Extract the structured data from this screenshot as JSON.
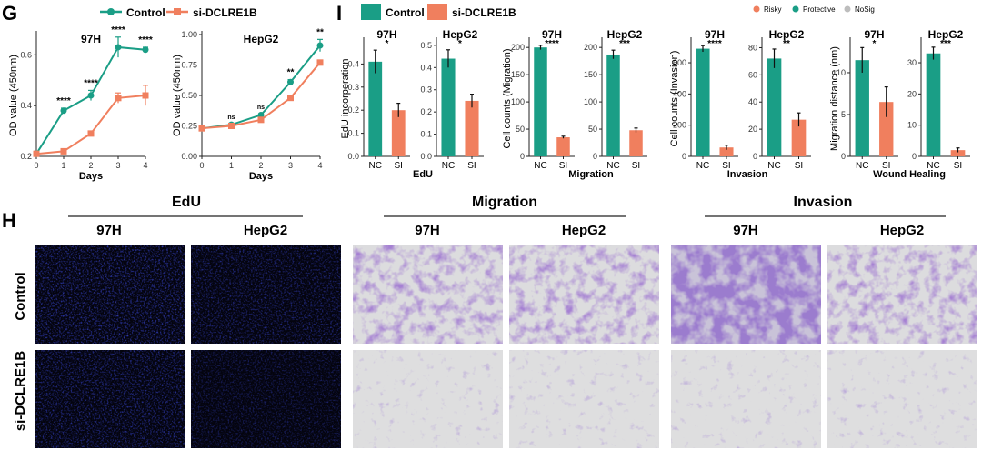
{
  "panels": {
    "G": "G",
    "I": "I",
    "H": "H"
  },
  "colors": {
    "control": "#1a9e86",
    "si": "#f07f5e",
    "risky": "#f07f5e",
    "protective": "#1a9e86",
    "nosig": "#bdbdbd",
    "axis": "#222222"
  },
  "legend_top": {
    "control": "Control",
    "si": "si-DCLRE1B"
  },
  "legend_i": {
    "control": "Control",
    "si": "si-DCLRE1B"
  },
  "legend_sig": {
    "risky": "Risky",
    "protective": "Protective",
    "nosig": "NoSig"
  },
  "chart_data": [
    {
      "type": "line",
      "title": "97H",
      "xlabel": "Days",
      "ylabel": "OD value (450nm)",
      "x": [
        0,
        1,
        2,
        3,
        4
      ],
      "xlim": [
        0,
        4
      ],
      "ylim": [
        0.2,
        0.68
      ],
      "yticks": [
        "0.2",
        "0.4",
        "0.6"
      ],
      "ytick_values": [
        0.2,
        0.4,
        0.6
      ],
      "series": [
        {
          "name": "Control",
          "values": [
            0.21,
            0.38,
            0.44,
            0.63,
            0.62
          ],
          "err": [
            0.01,
            0.01,
            0.02,
            0.04,
            0.01
          ]
        },
        {
          "name": "si-DCLRE1B",
          "values": [
            0.21,
            0.22,
            0.29,
            0.43,
            0.44
          ],
          "err": [
            0.01,
            0.01,
            0.01,
            0.02,
            0.04
          ]
        }
      ],
      "annotations": [
        "",
        "****",
        "****",
        "****",
        "****"
      ]
    },
    {
      "type": "line",
      "title": "HepG2",
      "xlabel": "Days",
      "ylabel": "OD value (450nm)",
      "x": [
        0,
        1,
        2,
        3,
        4
      ],
      "xlim": [
        0,
        4
      ],
      "ylim": [
        0.0,
        1.0
      ],
      "yticks": [
        "0.00",
        "0.25",
        "0.50",
        "0.75",
        "1.00"
      ],
      "ytick_values": [
        0,
        0.25,
        0.5,
        0.75,
        1.0
      ],
      "series": [
        {
          "name": "Control",
          "values": [
            0.23,
            0.26,
            0.34,
            0.61,
            0.91
          ],
          "err": [
            0.01,
            0.01,
            0.01,
            0.02,
            0.05
          ]
        },
        {
          "name": "si-DCLRE1B",
          "values": [
            0.23,
            0.25,
            0.3,
            0.48,
            0.77
          ],
          "err": [
            0.01,
            0.01,
            0.01,
            0.01,
            0.01
          ]
        }
      ],
      "annotations": [
        "",
        "ns",
        "ns",
        "**",
        "**"
      ]
    },
    {
      "type": "bar",
      "title": "97H",
      "ylabel": "EdU incorperation",
      "categories": [
        "NC",
        "SI"
      ],
      "values": [
        0.41,
        0.2
      ],
      "err": [
        0.05,
        0.03
      ],
      "ylim": [
        0,
        0.5
      ],
      "yticks": [
        "0.0",
        "0.1",
        "0.2",
        "0.3",
        "0.4"
      ],
      "ytick_values": [
        0,
        0.1,
        0.2,
        0.3,
        0.4
      ],
      "sig": "*"
    },
    {
      "type": "bar",
      "title": "HepG2",
      "ylabel": "",
      "categories": [
        "NC",
        "SI"
      ],
      "values": [
        0.44,
        0.25
      ],
      "err": [
        0.04,
        0.03
      ],
      "ylim": [
        0,
        0.52
      ],
      "yticks": [
        "0.0",
        "0.1",
        "0.2",
        "0.3",
        "0.4",
        "0.5"
      ],
      "ytick_values": [
        0,
        0.1,
        0.2,
        0.3,
        0.4,
        0.5
      ],
      "sig": "*"
    },
    {
      "type": "bar",
      "title": "97H",
      "ylabel": "Cell counts (Migration)",
      "categories": [
        "NC",
        "SI"
      ],
      "values": [
        200,
        35
      ],
      "err": [
        4,
        2
      ],
      "ylim": [
        0,
        212
      ],
      "yticks": [
        "0",
        "50",
        "100",
        "150",
        "200"
      ],
      "ytick_values": [
        0,
        50,
        100,
        150,
        200
      ],
      "sig": "****"
    },
    {
      "type": "bar",
      "title": "HepG2",
      "ylabel": "",
      "categories": [
        "NC",
        "SI"
      ],
      "values": [
        187,
        48
      ],
      "err": [
        8,
        4
      ],
      "ylim": [
        0,
        212
      ],
      "yticks": [
        "0",
        "50",
        "100",
        "150",
        "200"
      ],
      "ytick_values": [
        0,
        50,
        100,
        150,
        200
      ],
      "sig": "***"
    },
    {
      "type": "bar",
      "title": "97H",
      "ylabel": "Cell counts (Invasion)",
      "categories": [
        "NC",
        "SI"
      ],
      "values": [
        690,
        57
      ],
      "err": [
        20,
        15
      ],
      "ylim": [
        0,
        740
      ],
      "yticks": [
        "0",
        "200",
        "400",
        "600"
      ],
      "ytick_values": [
        0,
        200,
        400,
        600
      ],
      "sig": "****"
    },
    {
      "type": "bar",
      "title": "HepG2",
      "ylabel": "",
      "categories": [
        "NC",
        "SI"
      ],
      "values": [
        72,
        27
      ],
      "err": [
        7,
        5
      ],
      "ylim": [
        0,
        85
      ],
      "yticks": [
        "0",
        "20",
        "40",
        "60",
        "80"
      ],
      "ytick_values": [
        0,
        20,
        40,
        60,
        80
      ],
      "sig": "**"
    },
    {
      "type": "bar",
      "title": "97H",
      "ylabel": "Migration distance (nm)",
      "categories": [
        "NC",
        "SI"
      ],
      "values": [
        11.5,
        6.5
      ],
      "err": [
        1.5,
        1.8
      ],
      "ylim": [
        0,
        13.8
      ],
      "yticks": [
        "0",
        "5",
        "10"
      ],
      "ytick_values": [
        0,
        5,
        10
      ],
      "sig": "*"
    },
    {
      "type": "bar",
      "title": "HepG2",
      "ylabel": "",
      "categories": [
        "NC",
        "SI"
      ],
      "values": [
        33,
        2
      ],
      "err": [
        2,
        0.7
      ],
      "ylim": [
        0,
        37
      ],
      "yticks": [
        "0",
        "10",
        "20",
        "30"
      ],
      "ytick_values": [
        0,
        10,
        20,
        30
      ],
      "sig": "***"
    }
  ],
  "group_labels": {
    "edu": "EdU",
    "migration": "Migration",
    "invasion": "Invasion",
    "wound": "Wound Healing"
  },
  "panel_h": {
    "groups": [
      "EdU",
      "Migration",
      "Invasion"
    ],
    "cells": [
      "97H",
      "HepG2",
      "97H",
      "HepG2",
      "97H",
      "HepG2"
    ],
    "rows": [
      "Control",
      "si-DCLRE1B"
    ]
  }
}
